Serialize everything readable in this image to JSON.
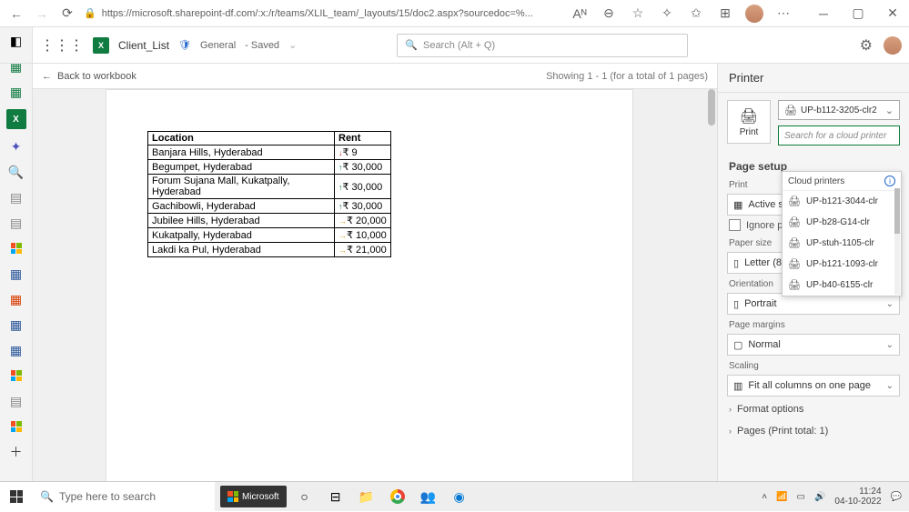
{
  "browser": {
    "url": "https://microsoft.sharepoint-df.com/:x:/r/teams/XLIL_team/_layouts/15/doc2.aspx?sourcedoc=%..."
  },
  "header": {
    "doc_title": "Client_List",
    "shield_label": "General",
    "saved_label": "- Saved",
    "search_placeholder": "Search (Alt + Q)"
  },
  "subbar": {
    "back_label": "Back to workbook",
    "showing_label": "Showing 1 - 1 (for a total of 1 pages)"
  },
  "table": {
    "headers": {
      "loc": "Location",
      "rent": "Rent"
    },
    "rows": [
      {
        "loc": "Banjara Hills, Hyderabad",
        "dir": "dn",
        "rent": "₹ 9"
      },
      {
        "loc": "Begumpet, Hyderabad",
        "dir": "up",
        "rent": "₹ 30,000"
      },
      {
        "loc": "Forum Sujana Mall, Kukatpally, Hyderabad",
        "dir": "up",
        "rent": "₹ 30,000"
      },
      {
        "loc": "Gachibowli, Hyderabad",
        "dir": "up",
        "rent": "₹ 30,000"
      },
      {
        "loc": "Jubilee Hills, Hyderabad",
        "dir": "rt",
        "rent": "₹ 20,000"
      },
      {
        "loc": "Kukatpally, Hyderabad",
        "dir": "rt",
        "rent": "₹ 10,000"
      },
      {
        "loc": "Lakdi ka Pul, Hyderabad",
        "dir": "rt",
        "rent": "₹ 21,000"
      }
    ]
  },
  "printer": {
    "title": "Printer",
    "print_btn": "Print",
    "selected": "UP-b112-3205-clr2",
    "search_placeholder": "Search for a cloud printer",
    "dd_title": "Cloud printers",
    "options": [
      "UP-b121-3044-clr",
      "UP-b28-G14-clr",
      "UP-stuh-1105-clr",
      "UP-b121-1093-clr",
      "UP-b40-6155-clr"
    ]
  },
  "page_setup": {
    "title": "Page setup",
    "print_label": "Print",
    "active_sheet": "Active she",
    "ignore": "Ignore pr",
    "paper_size_label": "Paper size",
    "paper_size_value": "Letter (8.5",
    "orientation_label": "Orientation",
    "orientation_value": "Portrait",
    "margins_label": "Page margins",
    "margins_value": "Normal",
    "scaling_label": "Scaling",
    "scaling_value": "Fit all columns on one page",
    "format_options": "Format options",
    "pages_label": "Pages (Print total: 1)"
  },
  "taskbar": {
    "search_placeholder": "Type here to search",
    "ms": "Microsoft",
    "time": "11:24",
    "date": "04-10-2022"
  }
}
